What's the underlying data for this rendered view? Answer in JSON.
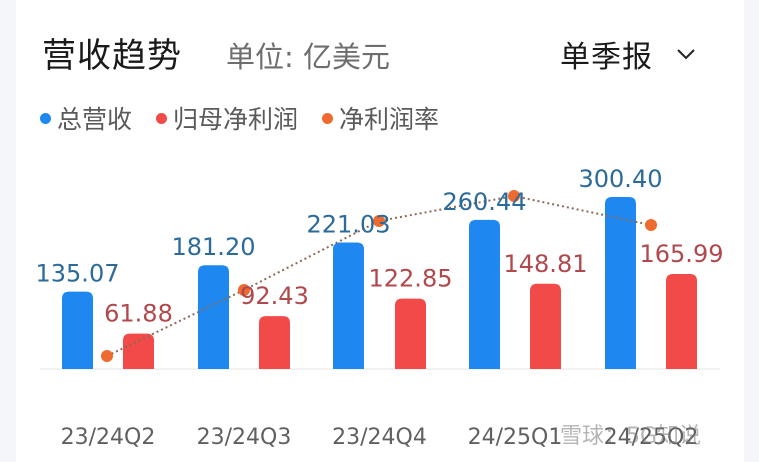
{
  "header": {
    "title": "营收趋势",
    "unit": "单位: 亿美元",
    "period_selector": "单季报"
  },
  "legend": [
    {
      "label": "总营收",
      "color": "#1e88f0"
    },
    {
      "label": "归母净利润",
      "color": "#f24a48"
    },
    {
      "label": "净利润率",
      "color": "#ef6a2e"
    }
  ],
  "watermark": "雪球：5G知说",
  "chart_data": {
    "type": "bar",
    "title": "营收趋势",
    "subtitle": "单位: 亿美元",
    "categories": [
      "23/24Q2",
      "23/24Q3",
      "23/24Q4",
      "24/25Q1",
      "24/25Q2"
    ],
    "series": [
      {
        "name": "总营收",
        "type": "bar",
        "color": "#1e88f0",
        "values": [
          135.07,
          181.2,
          221.03,
          260.44,
          300.4
        ]
      },
      {
        "name": "归母净利润",
        "type": "bar",
        "color": "#f24a48",
        "values": [
          61.88,
          92.43,
          122.85,
          148.81,
          165.99
        ]
      },
      {
        "name": "净利润率",
        "type": "line",
        "style": "dotted",
        "color": "#ef6a2e",
        "values_unlabeled": true
      }
    ],
    "labels_total_revenue": [
      "135.07",
      "181.20",
      "221.03",
      "260.44",
      "300.40"
    ],
    "labels_net_profit": [
      "61.88",
      "92.43",
      "122.85",
      "148.81",
      "165.99"
    ],
    "xlabel": "",
    "ylabel": "",
    "grid": false,
    "legend_position": "top-left"
  }
}
